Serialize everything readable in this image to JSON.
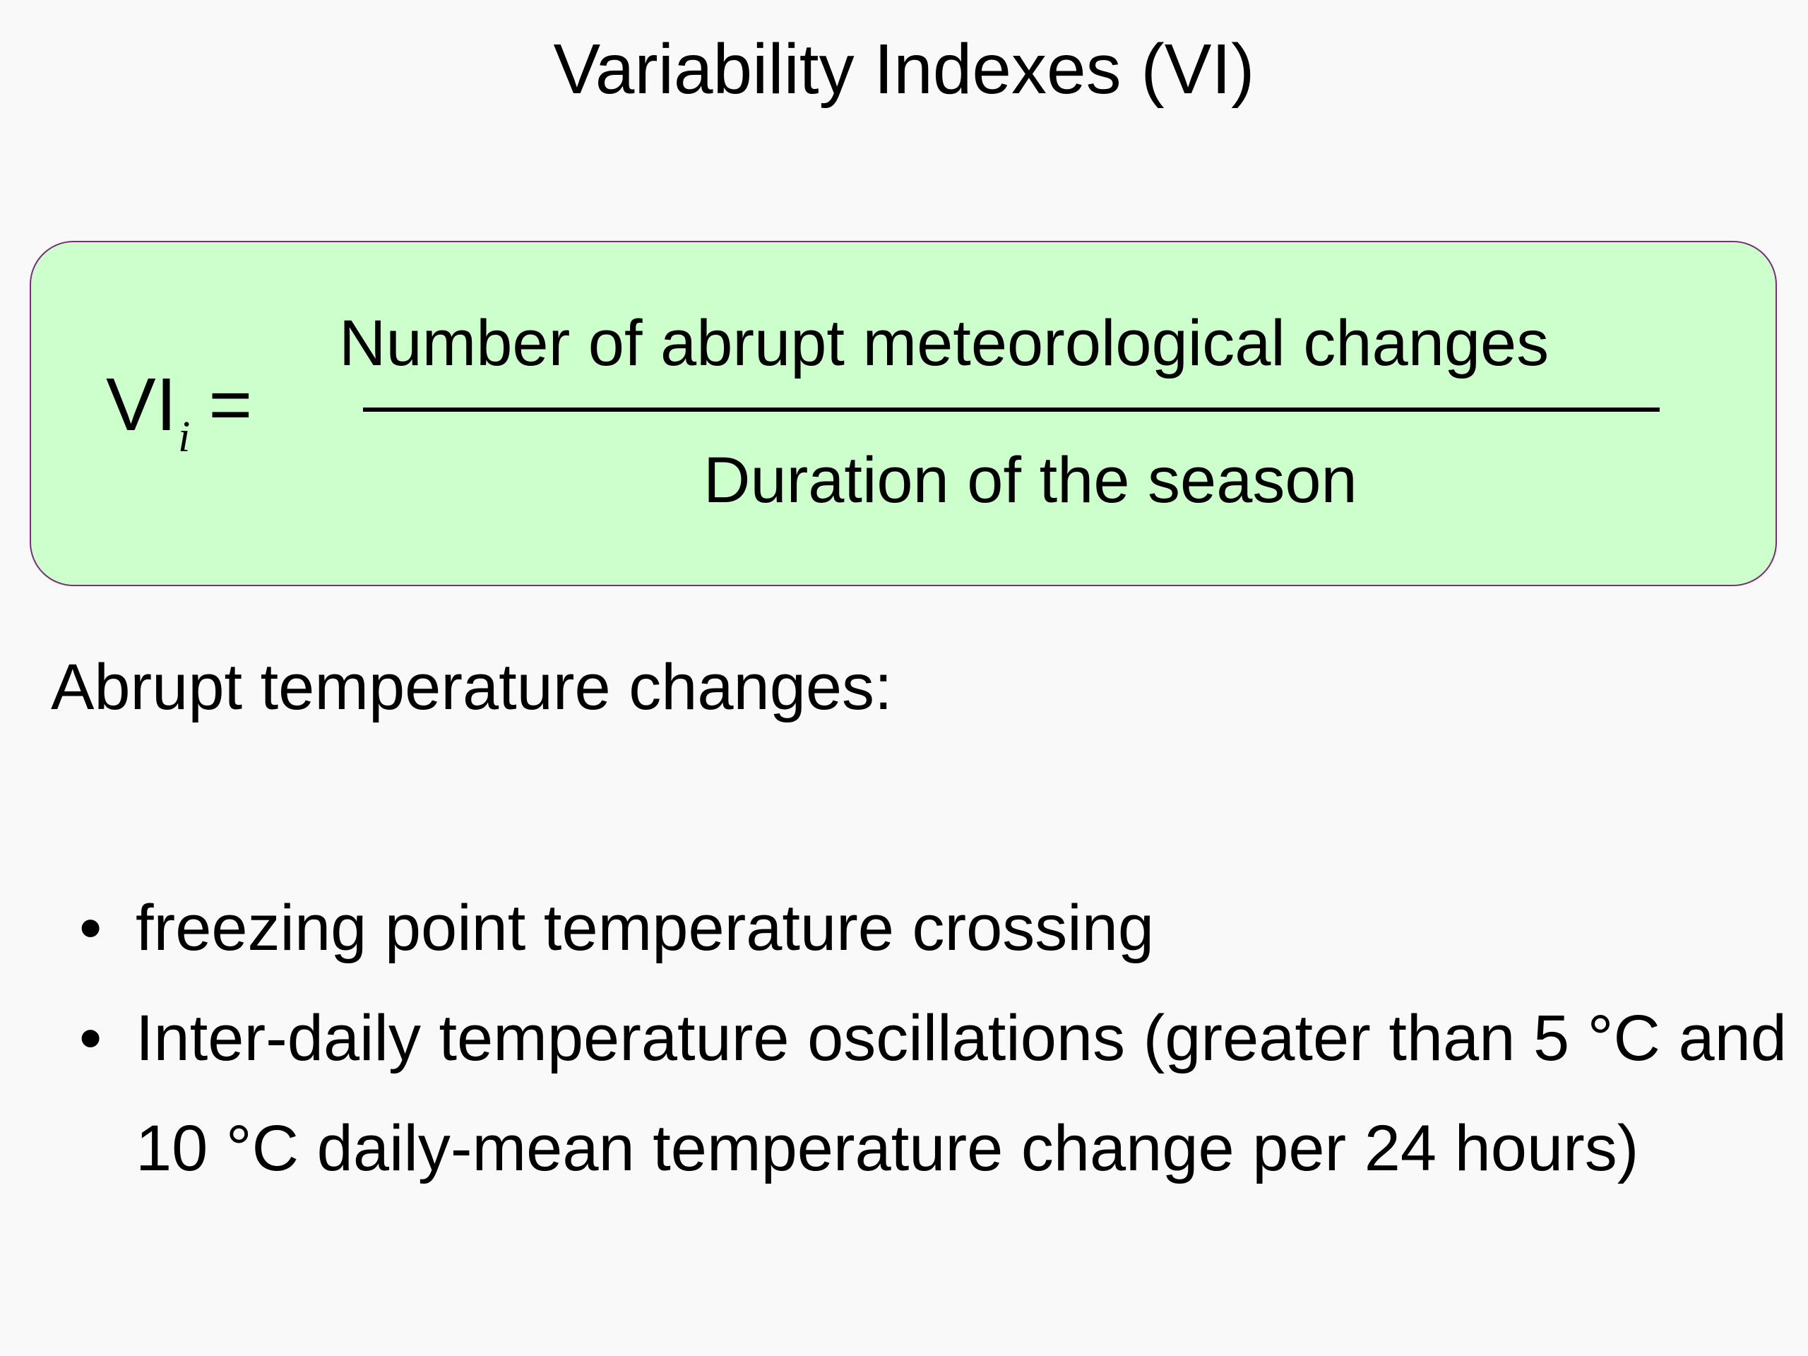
{
  "title": "Variability Indexes (VI)",
  "formula": {
    "lhs_symbol": "VI",
    "lhs_subscript": "i",
    "equals": "=",
    "numerator": "Number of abrupt meteorological changes",
    "denominator": "Duration of the season"
  },
  "subheading": "Abrupt temperature changes:",
  "bullet_char": "•",
  "bullets": [
    "freezing point temperature crossing",
    "Inter-daily temperature oscillations (greater than 5 °C and 10 °C daily-mean temperature change per 24 hours)"
  ],
  "colors": {
    "background": "#f9f9f9",
    "formula_box_fill": "#ccffcc",
    "formula_box_border": "#7b2d7b"
  }
}
